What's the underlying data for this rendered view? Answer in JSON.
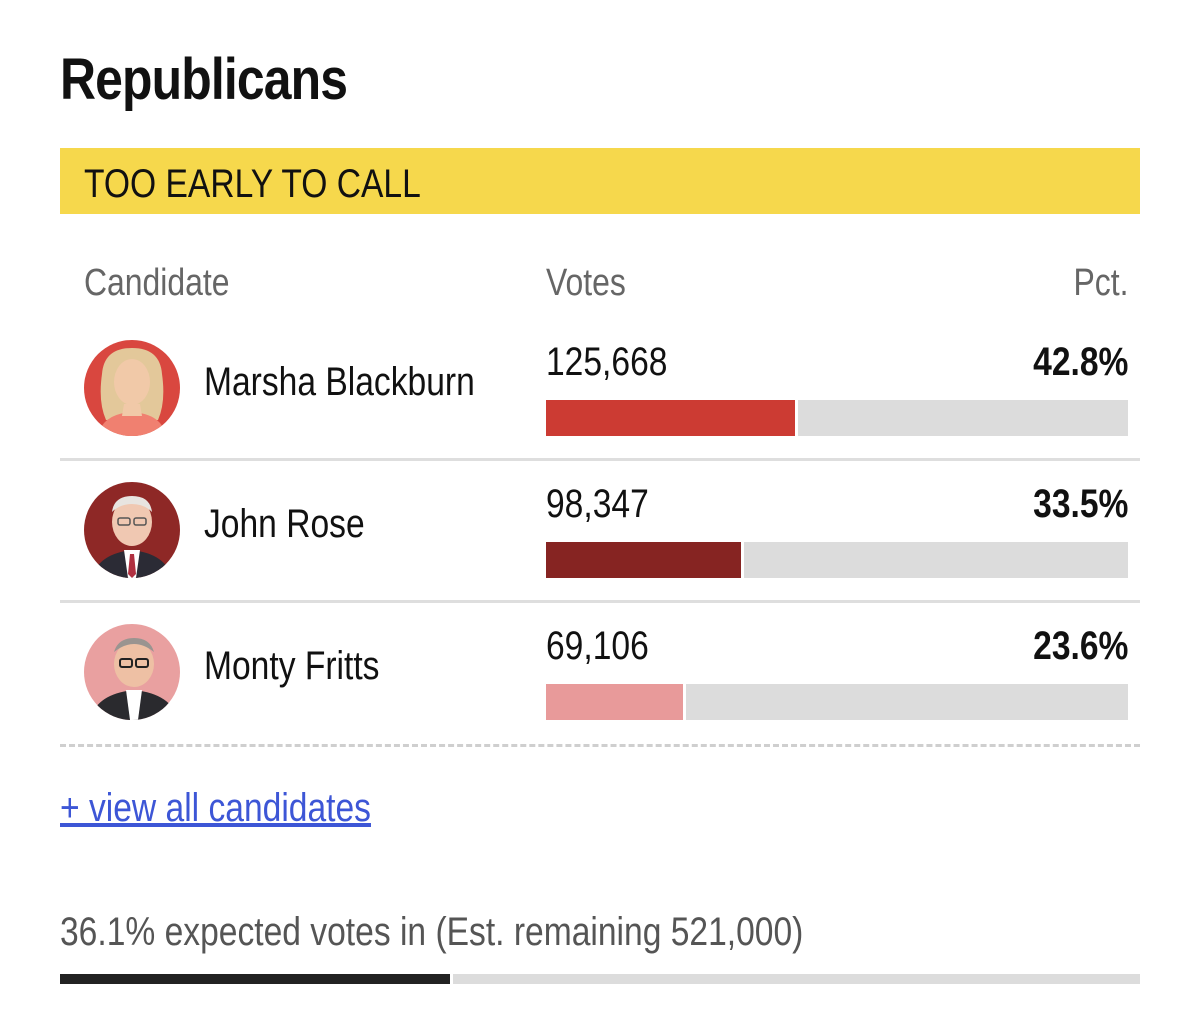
{
  "party_title": "Republicans",
  "race_status": "TOO EARLY TO CALL",
  "columns": {
    "candidate": "Candidate",
    "votes": "Votes",
    "pct": "Pct."
  },
  "candidates": [
    {
      "name": "Marsha Blackburn",
      "votes": "125,668",
      "pct": "42.8%",
      "share": 0.428,
      "color": "#cc3b33",
      "avatar_bg": "#d9473f"
    },
    {
      "name": "John Rose",
      "votes": "98,347",
      "pct": "33.5%",
      "share": 0.335,
      "color": "#862422",
      "avatar_bg": "#8e2826"
    },
    {
      "name": "Monty Fritts",
      "votes": "69,106",
      "pct": "23.6%",
      "share": 0.236,
      "color": "#e89a9a",
      "avatar_bg": "#e9a0a0"
    }
  ],
  "view_all_link": "+ view all candidates",
  "expected_votes_text": "36.1% expected votes in (Est. remaining 521,000)",
  "expected_share": 0.361
}
